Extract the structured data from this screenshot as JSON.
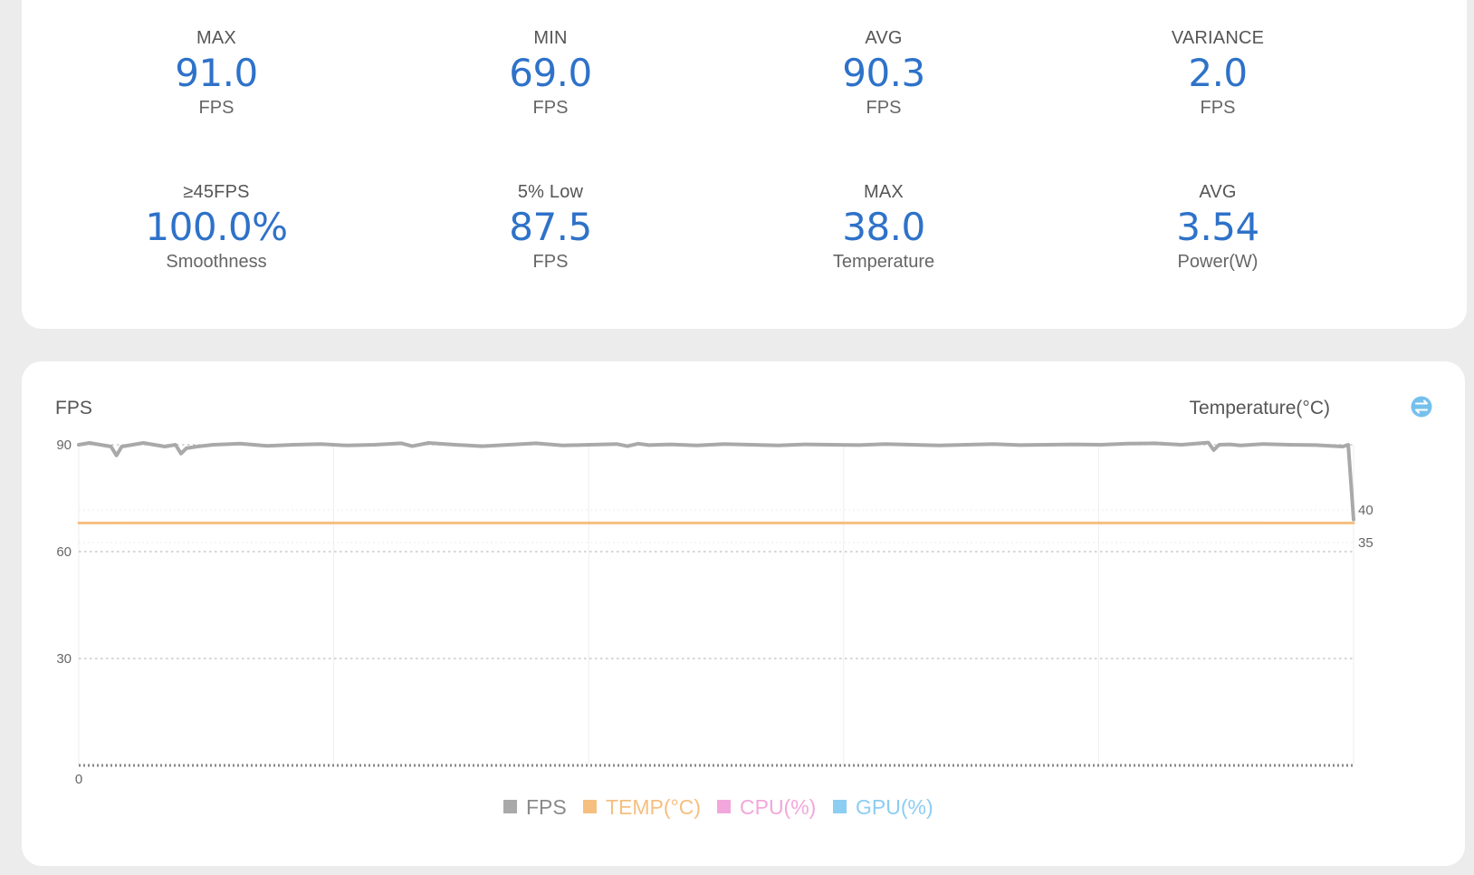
{
  "stats": [
    {
      "label": "MAX",
      "value": "91.0",
      "unit": "FPS"
    },
    {
      "label": "MIN",
      "value": "69.0",
      "unit": "FPS"
    },
    {
      "label": "AVG",
      "value": "90.3",
      "unit": "FPS"
    },
    {
      "label": "VARIANCE",
      "value": "2.0",
      "unit": "FPS"
    },
    {
      "label": "≥45FPS",
      "value": "100.0%",
      "unit": "Smoothness"
    },
    {
      "label": "5% Low",
      "value": "87.5",
      "unit": "FPS"
    },
    {
      "label": "MAX",
      "value": "38.0",
      "unit": "Temperature"
    },
    {
      "label": "AVG",
      "value": "3.54",
      "unit": "Power(W)"
    }
  ],
  "chart": {
    "left_title": "FPS",
    "right_title": "Temperature(°C)",
    "toggle_icon": "swap-icon",
    "left_ticks": [
      "90",
      "60",
      "30",
      "0"
    ],
    "right_ticks": [
      "40",
      "35"
    ],
    "legend": [
      {
        "name": "FPS",
        "color": "#a9a9a9"
      },
      {
        "name": "TEMP(°C)",
        "color": "#f5bf80"
      },
      {
        "name": "CPU(%)",
        "color": "#f2a7dc"
      },
      {
        "name": "GPU(%)",
        "color": "#8ccdf2"
      }
    ]
  },
  "chart_data": {
    "type": "line",
    "ylabel": "FPS",
    "y2label": "Temperature(°C)",
    "ylim": [
      0,
      90
    ],
    "y2_ticks": [
      35,
      40
    ],
    "grid": true,
    "legend_position": "bottom",
    "series": [
      {
        "name": "FPS",
        "axis": "left",
        "color": "#a9a9a9",
        "x": [
          0,
          2,
          4,
          6,
          7,
          8,
          10,
          12,
          14,
          16,
          18,
          19,
          20,
          22,
          25,
          30,
          35,
          40,
          45,
          50,
          55,
          60,
          62,
          65,
          70,
          75,
          80,
          85,
          90,
          95,
          100,
          102,
          104,
          106,
          108,
          110,
          115,
          120,
          125,
          130,
          135,
          140,
          145,
          150,
          155,
          160,
          165,
          170,
          175,
          180,
          185,
          190,
          195,
          200,
          205,
          210,
          211,
          212,
          214,
          216,
          218,
          220,
          225,
          230,
          235,
          236,
          237
        ],
        "y": [
          90,
          90.5,
          90,
          89.5,
          87,
          89.5,
          90,
          90.5,
          90,
          89.5,
          90,
          87.5,
          89,
          89.5,
          90,
          90.3,
          89.7,
          90,
          90.2,
          89.8,
          90,
          90.4,
          89.6,
          90.5,
          90,
          89.6,
          90,
          90.4,
          89.8,
          90,
          90.2,
          89.6,
          90.3,
          89.9,
          90,
          90.1,
          89.8,
          90.2,
          90,
          89.8,
          90.1,
          90,
          89.9,
          90.2,
          90,
          89.8,
          90,
          90.2,
          89.9,
          90,
          90.1,
          90,
          90.3,
          90.4,
          90,
          90.6,
          88.5,
          90,
          90.1,
          89.8,
          90,
          90.2,
          90,
          89.9,
          89.5,
          90,
          69
        ]
      },
      {
        "name": "TEMP(°C)",
        "axis": "right",
        "color": "#f5bf80",
        "x": [
          0,
          4,
          237
        ],
        "y": [
          38,
          38,
          38
        ]
      }
    ]
  }
}
